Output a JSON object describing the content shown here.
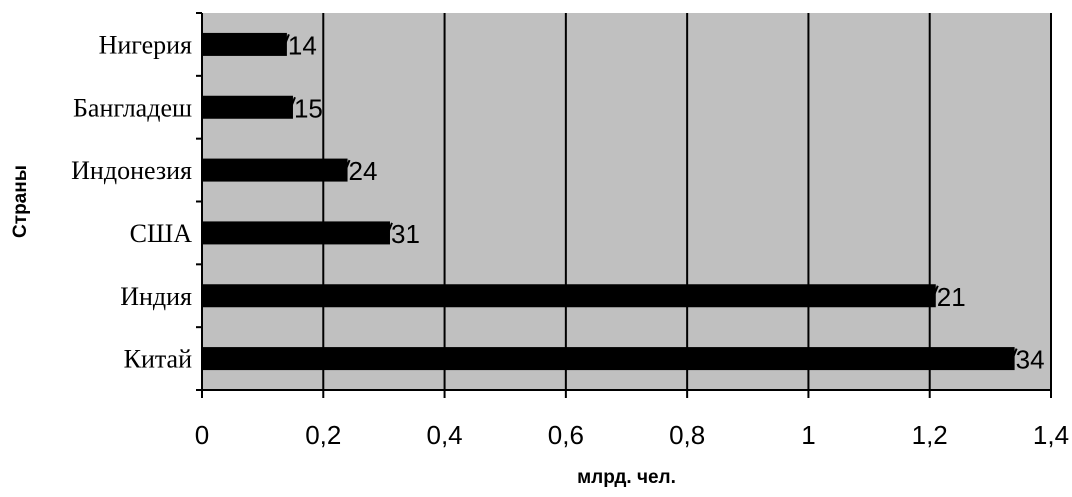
{
  "chart_data": {
    "type": "bar",
    "orientation": "horizontal",
    "categories": [
      "Китай",
      "Индия",
      "США",
      "Индонезия",
      "Бангладеш",
      "Нигерия"
    ],
    "values": [
      1.34,
      1.21,
      0.31,
      0.24,
      0.15,
      0.14
    ],
    "data_labels": [
      "1,34",
      "1,21",
      "0,31",
      "0,24",
      "0,15",
      "0,14"
    ],
    "visible_data_labels": [
      "34",
      "21",
      "31",
      "24",
      "15",
      "14"
    ],
    "xlabel": "млрд. чел.",
    "ylabel": "Страны",
    "xlim": [
      0,
      1.4
    ],
    "x_ticks": [
      0,
      0.2,
      0.4,
      0.6,
      0.8,
      1.0,
      1.2,
      1.4
    ],
    "x_tick_labels": [
      "0",
      "0,2",
      "0,4",
      "0,6",
      "0,8",
      "1",
      "1,2",
      "1,4"
    ],
    "grid": "vertical",
    "legend": "none",
    "colors": {
      "plot_background": "#c0c0c0",
      "bar": "#000000",
      "grid": "#000000"
    }
  }
}
